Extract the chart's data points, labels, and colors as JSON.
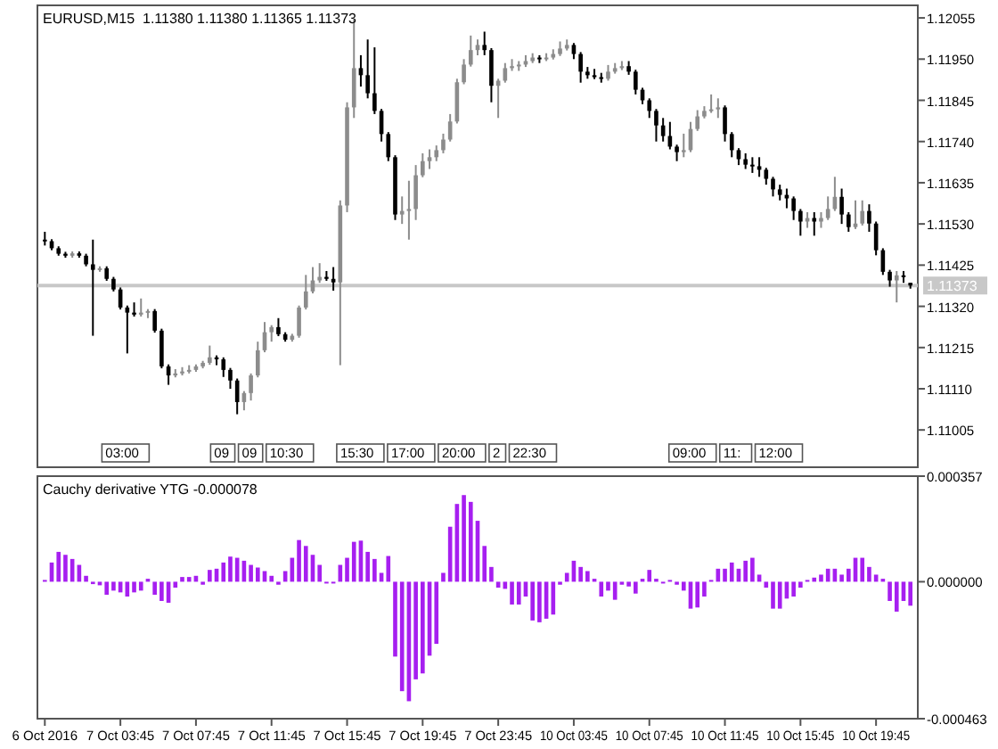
{
  "chart_data": [
    {
      "type": "candlestick",
      "title": "EURUSD,M15  1.11380 1.11380 1.11365 1.11373",
      "tick_labels": "y",
      "categories": [
        null,
        null,
        null,
        null,
        null,
        null,
        null,
        null,
        null,
        null,
        null,
        null,
        null,
        null,
        null,
        null,
        null,
        null,
        null,
        null,
        null,
        null,
        null,
        null,
        null,
        null,
        null,
        null,
        null,
        null,
        null,
        null,
        null,
        null,
        null,
        null,
        null,
        null,
        null,
        null,
        null,
        null,
        null,
        null,
        null,
        null,
        null,
        null,
        null,
        null,
        null,
        null,
        null,
        null,
        null,
        null,
        null,
        null,
        null,
        null,
        null,
        null,
        null,
        null,
        null,
        null,
        null,
        null,
        null,
        null,
        null,
        null,
        null,
        null,
        null,
        null,
        null,
        null,
        null,
        null,
        null,
        null,
        null,
        null,
        null,
        null,
        null,
        null,
        null,
        null,
        null,
        null,
        null,
        null,
        null,
        null,
        null,
        null,
        null,
        null,
        null,
        null,
        null,
        null,
        null,
        null,
        null,
        null,
        null,
        null,
        null,
        null,
        null,
        null,
        null,
        null,
        null,
        null,
        null,
        null,
        null,
        null,
        null,
        null,
        null,
        null,
        null
      ],
      "ohlc": [
        [
          1.1149,
          1.1151,
          1.11475,
          1.11486
        ],
        [
          1.11486,
          1.11491,
          1.11463,
          1.11468
        ],
        [
          1.11468,
          1.11473,
          1.11449,
          1.11454
        ],
        [
          1.11454,
          1.11459,
          1.11444,
          1.11449
        ],
        [
          1.11449,
          1.1146,
          1.11444,
          1.11455
        ],
        [
          1.11455,
          1.1146,
          1.11444,
          1.11449
        ],
        [
          1.11449,
          1.11454,
          1.11422,
          1.11427
        ],
        [
          1.11427,
          1.1149,
          1.11245,
          1.11413
        ],
        [
          1.11413,
          1.11422,
          1.11408,
          1.11417
        ],
        [
          1.11417,
          1.11422,
          1.11385,
          1.1139
        ],
        [
          1.1139,
          1.11395,
          1.11358,
          1.11363
        ],
        [
          1.11363,
          1.11368,
          1.11312,
          1.11317
        ],
        [
          1.11317,
          1.11322,
          1.112,
          1.11304
        ],
        [
          1.11304,
          1.1133,
          1.11294,
          1.11299
        ],
        [
          1.11299,
          1.1134,
          1.11294,
          1.11304
        ],
        [
          1.11304,
          1.11313,
          1.1129,
          1.11308
        ],
        [
          1.11308,
          1.11313,
          1.11253,
          1.11258
        ],
        [
          1.11258,
          1.11263,
          1.11162,
          1.11167
        ],
        [
          1.11167,
          1.11172,
          1.1112,
          1.11144
        ],
        [
          1.11144,
          1.1116,
          1.11139,
          1.11149
        ],
        [
          1.11149,
          1.11165,
          1.11144,
          1.11154
        ],
        [
          1.11154,
          1.1117,
          1.11149,
          1.11158
        ],
        [
          1.11158,
          1.11172,
          1.11153,
          1.11167
        ],
        [
          1.11167,
          1.11181,
          1.11162,
          1.11176
        ],
        [
          1.11176,
          1.1122,
          1.11171,
          1.1119
        ],
        [
          1.1119,
          1.11195,
          1.1117,
          1.11185
        ],
        [
          1.11185,
          1.1119,
          1.1114,
          1.11158
        ],
        [
          1.11158,
          1.11163,
          1.1111,
          1.11131
        ],
        [
          1.11131,
          1.11136,
          1.11045,
          1.11076
        ],
        [
          1.11076,
          1.11104,
          1.11055,
          1.11099
        ],
        [
          1.11099,
          1.11149,
          1.1108,
          1.11144
        ],
        [
          1.11144,
          1.1123,
          1.11139,
          1.11208
        ],
        [
          1.11208,
          1.1128,
          1.11203,
          1.11254
        ],
        [
          1.11254,
          1.11272,
          1.1123,
          1.11267
        ],
        [
          1.11267,
          1.1129,
          1.11244,
          1.11249
        ],
        [
          1.11249,
          1.11254,
          1.1123,
          1.11235
        ],
        [
          1.11235,
          1.1125,
          1.1123,
          1.11245
        ],
        [
          1.11245,
          1.11322,
          1.1124,
          1.11317
        ],
        [
          1.11317,
          1.114,
          1.11312,
          1.11358
        ],
        [
          1.11358,
          1.1142,
          1.11353,
          1.11386
        ],
        [
          1.11386,
          1.1143,
          1.1138,
          1.11395
        ],
        [
          1.11395,
          1.1141,
          1.11385,
          1.1139
        ],
        [
          1.1139,
          1.1142,
          1.1136,
          1.11381
        ],
        [
          1.11381,
          1.1159,
          1.1117,
          1.11577
        ],
        [
          1.11577,
          1.1184,
          1.1156,
          1.11827
        ],
        [
          1.11827,
          1.1205,
          1.118,
          1.11927
        ],
        [
          1.11927,
          1.1196,
          1.1188,
          1.11909
        ],
        [
          1.11909,
          1.12,
          1.1185,
          1.11863
        ],
        [
          1.11863,
          1.1198,
          1.1181,
          1.11818
        ],
        [
          1.11818,
          1.11823,
          1.1174,
          1.11759
        ],
        [
          1.11759,
          1.11764,
          1.1169,
          1.117
        ],
        [
          1.117,
          1.11705,
          1.1154,
          1.11554
        ],
        [
          1.11554,
          1.116,
          1.1153,
          1.11563
        ],
        [
          1.11563,
          1.1164,
          1.1149,
          1.11568
        ],
        [
          1.11568,
          1.1168,
          1.1154,
          1.11654
        ],
        [
          1.11654,
          1.1171,
          1.11649,
          1.1169
        ],
        [
          1.1169,
          1.1172,
          1.1167,
          1.117
        ],
        [
          1.117,
          1.1173,
          1.1169,
          1.11718
        ],
        [
          1.11718,
          1.1176,
          1.1171,
          1.11745
        ],
        [
          1.11745,
          1.1181,
          1.1174,
          1.11791
        ],
        [
          1.11791,
          1.119,
          1.11786,
          1.11891
        ],
        [
          1.11891,
          1.1195,
          1.11886,
          1.11936
        ],
        [
          1.11936,
          1.1201,
          1.11931,
          1.11973
        ],
        [
          1.11973,
          1.12,
          1.1196,
          1.11986
        ],
        [
          1.11986,
          1.1202,
          1.1196,
          1.11973
        ],
        [
          1.11973,
          1.11978,
          1.1184,
          1.11882
        ],
        [
          1.11882,
          1.119,
          1.118,
          1.11895
        ],
        [
          1.11895,
          1.1194,
          1.1189,
          1.11927
        ],
        [
          1.11927,
          1.1195,
          1.1192,
          1.11932
        ],
        [
          1.11932,
          1.11945,
          1.1192,
          1.11936
        ],
        [
          1.11936,
          1.1196,
          1.1193,
          1.11945
        ],
        [
          1.11945,
          1.11965,
          1.1194,
          1.11954
        ],
        [
          1.11954,
          1.1196,
          1.1194,
          1.1195
        ],
        [
          1.1195,
          1.11965,
          1.11945,
          1.11954
        ],
        [
          1.11954,
          1.11975,
          1.11949,
          1.11963
        ],
        [
          1.11963,
          1.11995,
          1.11958,
          1.11977
        ],
        [
          1.11977,
          1.12,
          1.11972,
          1.11986
        ],
        [
          1.11986,
          1.11991,
          1.1195,
          1.11963
        ],
        [
          1.11963,
          1.11968,
          1.1189,
          1.11918
        ],
        [
          1.11918,
          1.1193,
          1.119,
          1.11909
        ],
        [
          1.11909,
          1.11925,
          1.11899,
          1.11904
        ],
        [
          1.11904,
          1.11915,
          1.1189,
          1.119
        ],
        [
          1.119,
          1.11935,
          1.11895,
          1.11918
        ],
        [
          1.11918,
          1.1194,
          1.11913,
          1.11927
        ],
        [
          1.11927,
          1.11945,
          1.11922,
          1.11932
        ],
        [
          1.11932,
          1.11945,
          1.1191,
          1.11918
        ],
        [
          1.11918,
          1.11923,
          1.1186,
          1.11872
        ],
        [
          1.11872,
          1.11877,
          1.11835,
          1.11845
        ],
        [
          1.11845,
          1.1185,
          1.118,
          1.11818
        ],
        [
          1.11818,
          1.11823,
          1.1174,
          1.11781
        ],
        [
          1.11781,
          1.118,
          1.1174,
          1.11754
        ],
        [
          1.11754,
          1.1179,
          1.1172,
          1.11727
        ],
        [
          1.11727,
          1.11732,
          1.1169,
          1.11713
        ],
        [
          1.11713,
          1.1176,
          1.117,
          1.11718
        ],
        [
          1.11718,
          1.1179,
          1.11713,
          1.11772
        ],
        [
          1.11772,
          1.1182,
          1.11767,
          1.11804
        ],
        [
          1.11804,
          1.1183,
          1.11799,
          1.11818
        ],
        [
          1.11818,
          1.1186,
          1.11813,
          1.11822
        ],
        [
          1.11822,
          1.1185,
          1.118,
          1.11827
        ],
        [
          1.11827,
          1.11832,
          1.1174,
          1.11759
        ],
        [
          1.11759,
          1.11764,
          1.117,
          1.11718
        ],
        [
          1.11718,
          1.11723,
          1.1168,
          1.11695
        ],
        [
          1.11695,
          1.1171,
          1.1167,
          1.11681
        ],
        [
          1.11681,
          1.117,
          1.1166,
          1.11677
        ],
        [
          1.11677,
          1.117,
          1.1165,
          1.11668
        ],
        [
          1.11668,
          1.11673,
          1.1163,
          1.11645
        ],
        [
          1.11645,
          1.1165,
          1.116,
          1.11618
        ],
        [
          1.11618,
          1.1163,
          1.1159,
          1.11604
        ],
        [
          1.11604,
          1.1162,
          1.1157,
          1.11595
        ],
        [
          1.11595,
          1.116,
          1.1154,
          1.11563
        ],
        [
          1.11563,
          1.11568,
          1.115,
          1.11536
        ],
        [
          1.11536,
          1.1156,
          1.1152,
          1.11545
        ],
        [
          1.11545,
          1.1156,
          1.115,
          1.11536
        ],
        [
          1.11536,
          1.1156,
          1.1152,
          1.11545
        ],
        [
          1.11545,
          1.116,
          1.1154,
          1.11568
        ],
        [
          1.11568,
          1.1165,
          1.11563,
          1.11599
        ],
        [
          1.11599,
          1.1162,
          1.1153,
          1.11554
        ],
        [
          1.11554,
          1.1156,
          1.1151,
          1.11522
        ],
        [
          1.11522,
          1.1159,
          1.11517,
          1.11531
        ],
        [
          1.11531,
          1.1159,
          1.11526,
          1.11563
        ],
        [
          1.11563,
          1.1158,
          1.1151,
          1.11531
        ],
        [
          1.11531,
          1.11536,
          1.1145,
          1.11463
        ],
        [
          1.11463,
          1.11468,
          1.114,
          1.11408
        ],
        [
          1.11408,
          1.11413,
          1.1137,
          1.11386
        ],
        [
          1.11386,
          1.1141,
          1.1133,
          1.11399
        ],
        [
          1.11399,
          1.1141,
          1.1138,
          1.11395
        ],
        [
          1.1138,
          1.1138,
          1.11365,
          1.11373
        ]
      ],
      "ylim": [
        1.1091,
        1.12087
      ],
      "yticks": [
        1.12055,
        {
          "value": 1.1195,
          "label": "1.11950"
        },
        1.11845,
        {
          "value": 1.1174,
          "label": "1.11740"
        },
        1.11635,
        {
          "value": 1.1153,
          "label": "1.11530"
        },
        1.11425,
        {
          "value": 1.1132,
          "label": "1.11320"
        },
        1.11215,
        {
          "value": 1.1111,
          "label": "1.11110"
        },
        1.11005
      ],
      "ref_lines": [
        {
          "axis": "y",
          "value": 1.11373,
          "label": "1.11373",
          "color": "#c8c8c8"
        }
      ],
      "annotations": [
        "03:00",
        "09",
        "09",
        "10:30",
        "15:30",
        "17:00",
        "20:00",
        "2",
        "22:30",
        "09:00",
        "11:",
        "12:00"
      ]
    },
    {
      "type": "bar",
      "title": "Cauchy derivative YTG -0.000078",
      "color": "#a61ff0",
      "categories": [
        "6 Oct 2016",
        null,
        null,
        null,
        null,
        null,
        null,
        null,
        null,
        null,
        null,
        "7 Oct 03:45",
        null,
        null,
        null,
        null,
        null,
        null,
        null,
        null,
        null,
        null,
        "7 Oct 07:45",
        null,
        null,
        null,
        null,
        null,
        null,
        null,
        null,
        null,
        null,
        "7 Oct 11:45",
        null,
        null,
        null,
        null,
        null,
        null,
        null,
        null,
        null,
        null,
        "7 Oct 15:45",
        null,
        null,
        null,
        null,
        null,
        null,
        null,
        null,
        null,
        null,
        "7 Oct 19:45",
        null,
        null,
        null,
        null,
        null,
        null,
        null,
        null,
        null,
        null,
        "7 Oct 23:45",
        null,
        null,
        null,
        null,
        null,
        null,
        null,
        null,
        null,
        null,
        "10 Oct 03:45",
        null,
        null,
        null,
        null,
        null,
        null,
        null,
        null,
        null,
        null,
        "10 Oct 07:45",
        null,
        null,
        null,
        null,
        null,
        null,
        null,
        null,
        null,
        null,
        "10 Oct 11:45",
        null,
        null,
        null,
        null,
        null,
        null,
        null,
        null,
        null,
        null,
        "10 Oct 15:45",
        null,
        null,
        null,
        null,
        null,
        null,
        null,
        null,
        null,
        null,
        "10 Oct 19:45",
        null,
        null,
        null,
        null,
        null
      ],
      "values": [
        6e-06,
        6.5e-05,
        0.000101,
        9.1e-05,
        7.7e-05,
        5.7e-05,
        2e-05,
        -8e-06,
        -1.2e-05,
        -4.4e-05,
        -3e-05,
        -3.6e-05,
        -5e-05,
        -3.6e-05,
        -3e-05,
        1e-05,
        -4.4e-05,
        -6.5e-05,
        -7.1e-05,
        -2e-05,
        1.6e-05,
        1.6e-05,
        2e-05,
        -1e-05,
        4e-05,
        4.4e-05,
        6.5e-05,
        8.5e-05,
        8.1e-05,
        7.1e-05,
        5.7e-05,
        4.8e-05,
        3.6e-05,
        2e-05,
        -1e-05,
        3.6e-05,
        8.1e-05,
        0.000141,
        0.000121,
        9.1e-05,
        5.7e-05,
        -6e-06,
        -6e-06,
        5.7e-05,
        8.1e-05,
        0.000135,
        0.000139,
        0.000101,
        7.7e-05,
        3e-05,
        8.7e-05,
        -0.000253,
        -0.00037,
        -0.000404,
        -0.00033,
        -0.00031,
        -0.00025,
        -0.00021,
        3e-05,
        0.000186,
        0.000263,
        0.000293,
        0.00027,
        0.000206,
        0.000121,
        5e-05,
        -2e-05,
        -2.4e-05,
        -7.7e-05,
        -7.7e-05,
        -5e-05,
        -0.000131,
        -0.000137,
        -0.000125,
        -0.000111,
        -1e-05,
        3e-05,
        7.1e-05,
        5e-05,
        3.6e-05,
        1e-05,
        -5e-05,
        -3e-05,
        -6.1e-05,
        -1e-05,
        -1.6e-05,
        -4e-05,
        1e-05,
        4e-05,
        1e-05,
        -6e-06,
        6e-06,
        -1e-05,
        -3e-05,
        -9.1e-05,
        -8.7e-05,
        -5e-05,
        6e-06,
        4.4e-05,
        4.4e-05,
        6.5e-05,
        4.4e-05,
        7.1e-05,
        8.1e-05,
        2.4e-05,
        -2e-05,
        -9.1e-05,
        -9.1e-05,
        -5.7e-05,
        -5e-05,
        -2e-05,
        6e-06,
        1.4e-05,
        2.4e-05,
        4.4e-05,
        4.4e-05,
        2.4e-05,
        4.4e-05,
        8.1e-05,
        8.1e-05,
        5e-05,
        2.4e-05,
        1e-05,
        -6.5e-05,
        -0.000101,
        -6.5e-05,
        -8.1e-05
      ],
      "ylim": [
        -0.000463,
        0.000357
      ],
      "yticks": [
        {
          "value": 0.000357,
          "label": "0.000357"
        },
        {
          "value": 0,
          "label": "0.000000"
        },
        {
          "value": -0.000463,
          "label": "-0.000463"
        }
      ]
    }
  ]
}
